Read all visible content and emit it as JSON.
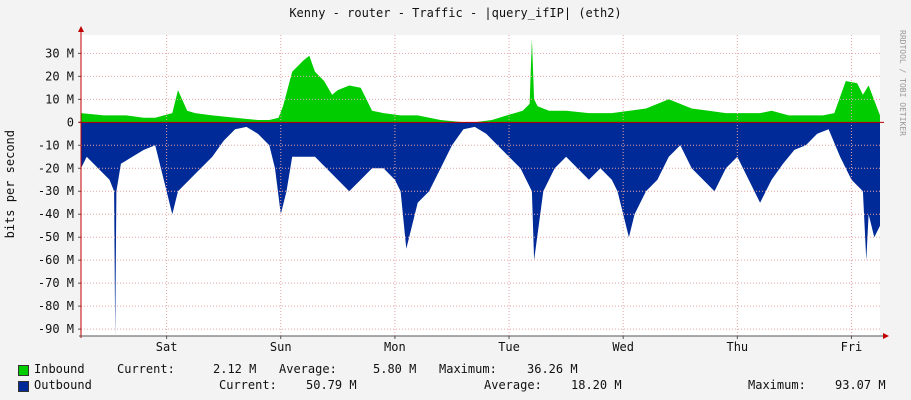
{
  "chart_data": {
    "type": "area",
    "title": "Kenny - router - Traffic - |query_ifIP| (eth2)",
    "ylabel": "bits per second",
    "watermark": "RRDTOOL / TOBI OETIKER",
    "ylim": [
      -93000000,
      38000000
    ],
    "yticks": [
      30000000,
      20000000,
      10000000,
      0,
      -10000000,
      -20000000,
      -30000000,
      -40000000,
      -50000000,
      -60000000,
      -70000000,
      -80000000,
      -90000000
    ],
    "ytick_labels": [
      "30 M",
      "20 M",
      "10 M",
      "0",
      "-10 M",
      "-20 M",
      "-30 M",
      "-40 M",
      "-50 M",
      "-60 M",
      "-70 M",
      "-80 M",
      "-90 M"
    ],
    "xlim": [
      -0.75,
      6.25
    ],
    "xticks": [
      0,
      1,
      2,
      3,
      4,
      5,
      6
    ],
    "xtick_labels": [
      "Sat",
      "Sun",
      "Mon",
      "Tue",
      "Wed",
      "Thu",
      "Fri"
    ],
    "grid": true,
    "colors": {
      "inbound": "#00cc00",
      "outbound": "#002a97",
      "grid": "#e3a3a3",
      "axis": "#c00000",
      "background": "#f3f3f3",
      "plot_background": "#ffffff"
    },
    "series": [
      {
        "name": "Inbound",
        "x": [
          -0.75,
          -0.55,
          -0.35,
          -0.2,
          -0.1,
          0.05,
          0.1,
          0.18,
          0.25,
          0.4,
          0.6,
          0.8,
          0.9,
          0.98,
          1.02,
          1.1,
          1.2,
          1.25,
          1.3,
          1.38,
          1.45,
          1.5,
          1.6,
          1.7,
          1.75,
          1.8,
          1.9,
          2.05,
          2.2,
          2.4,
          2.6,
          2.7,
          2.85,
          2.98,
          3.05,
          3.12,
          3.18,
          3.2,
          3.22,
          3.25,
          3.35,
          3.5,
          3.7,
          3.9,
          4.2,
          4.4,
          4.6,
          4.75,
          4.9,
          5.0,
          5.1,
          5.2,
          5.3,
          5.45,
          5.6,
          5.75,
          5.85,
          5.95,
          6.05,
          6.1,
          6.15,
          6.25
        ],
        "values": [
          4000000,
          3000000,
          3000000,
          2000000,
          2000000,
          4000000,
          14000000,
          5000000,
          4000000,
          3000000,
          2000000,
          1000000,
          1000000,
          2000000,
          7000000,
          22000000,
          27000000,
          29000000,
          22000000,
          18000000,
          12000000,
          14000000,
          16000000,
          15000000,
          10000000,
          5000000,
          4000000,
          3000000,
          3000000,
          1000000,
          0,
          0,
          1000000,
          3000000,
          4000000,
          5000000,
          8000000,
          36260000,
          10000000,
          7000000,
          5000000,
          5000000,
          4000000,
          4000000,
          6000000,
          10000000,
          6000000,
          5000000,
          4000000,
          4000000,
          4000000,
          4000000,
          5000000,
          3000000,
          3000000,
          3000000,
          4000000,
          18000000,
          17000000,
          12000000,
          16000000,
          3000000
        ]
      },
      {
        "name": "Outbound",
        "x": [
          -0.75,
          -0.7,
          -0.6,
          -0.5,
          -0.46,
          -0.45,
          -0.44,
          -0.4,
          -0.3,
          -0.2,
          -0.1,
          0.05,
          0.1,
          0.2,
          0.3,
          0.4,
          0.5,
          0.6,
          0.7,
          0.8,
          0.9,
          0.95,
          1.0,
          1.05,
          1.1,
          1.2,
          1.3,
          1.4,
          1.5,
          1.6,
          1.7,
          1.8,
          1.9,
          2.0,
          2.05,
          2.1,
          2.2,
          2.3,
          2.4,
          2.5,
          2.6,
          2.7,
          2.8,
          2.9,
          3.0,
          3.1,
          3.2,
          3.22,
          3.3,
          3.4,
          3.5,
          3.6,
          3.7,
          3.8,
          3.9,
          3.95,
          4.0,
          4.05,
          4.1,
          4.2,
          4.3,
          4.4,
          4.5,
          4.6,
          4.7,
          4.8,
          4.9,
          5.0,
          5.1,
          5.2,
          5.3,
          5.4,
          5.5,
          5.6,
          5.7,
          5.8,
          5.9,
          6.0,
          6.1,
          6.13,
          6.15,
          6.2,
          6.25
        ],
        "values": [
          -20000000,
          -15000000,
          -20000000,
          -25000000,
          -30000000,
          -93070000,
          -30000000,
          -18000000,
          -15000000,
          -12000000,
          -10000000,
          -40000000,
          -30000000,
          -25000000,
          -20000000,
          -15000000,
          -8000000,
          -3000000,
          -2000000,
          -5000000,
          -10000000,
          -20000000,
          -40000000,
          -30000000,
          -15000000,
          -15000000,
          -15000000,
          -20000000,
          -25000000,
          -30000000,
          -25000000,
          -20000000,
          -20000000,
          -25000000,
          -30000000,
          -55000000,
          -35000000,
          -30000000,
          -20000000,
          -10000000,
          -3000000,
          -2000000,
          -5000000,
          -10000000,
          -15000000,
          -20000000,
          -30000000,
          -60000000,
          -30000000,
          -20000000,
          -15000000,
          -20000000,
          -25000000,
          -20000000,
          -25000000,
          -30000000,
          -40000000,
          -50000000,
          -40000000,
          -30000000,
          -25000000,
          -15000000,
          -10000000,
          -20000000,
          -25000000,
          -30000000,
          -20000000,
          -15000000,
          -25000000,
          -35000000,
          -25000000,
          -18000000,
          -12000000,
          -10000000,
          -5000000,
          -3000000,
          -15000000,
          -25000000,
          -30000000,
          -60000000,
          -40000000,
          -50000000,
          -45000000
        ]
      }
    ]
  },
  "legend": {
    "inbound": {
      "label": "Inbound",
      "current_label": "Current:",
      "current": "2.12 M",
      "average_label": "Average:",
      "average": "5.80 M",
      "maximum_label": "Maximum:",
      "maximum": "36.26 M"
    },
    "outbound": {
      "label": "Outbound",
      "current_label": "Current:",
      "current": "50.79 M",
      "average_label": "Average:",
      "average": "18.20 M",
      "maximum_label": "Maximum:",
      "maximum": "93.07 M"
    }
  }
}
